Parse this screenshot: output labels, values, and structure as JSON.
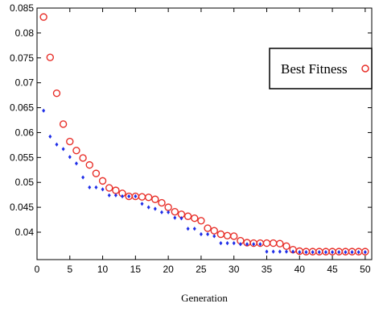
{
  "chart_data": {
    "type": "scatter",
    "xlabel": "Generation",
    "ylabel": "",
    "xlim": [
      0,
      51
    ],
    "ylim": [
      0.0345,
      0.085
    ],
    "x_ticks": [
      0,
      5,
      10,
      15,
      20,
      25,
      30,
      35,
      40,
      45,
      50
    ],
    "y_ticks": [
      0.04,
      0.045,
      0.05,
      0.055,
      0.06,
      0.065,
      0.07,
      0.075,
      0.08,
      0.085
    ],
    "grid": false,
    "legend": {
      "position": "top-right",
      "entries": [
        "Best Fitness"
      ]
    },
    "series": [
      {
        "name": "Best Fitness",
        "marker": "open-circle",
        "color": "#e8302a",
        "x": [
          1,
          2,
          3,
          4,
          5,
          6,
          7,
          8,
          9,
          10,
          11,
          12,
          13,
          14,
          15,
          16,
          17,
          18,
          19,
          20,
          21,
          22,
          23,
          24,
          25,
          26,
          27,
          28,
          29,
          30,
          31,
          32,
          33,
          34,
          35,
          36,
          37,
          38,
          39,
          40,
          41,
          42,
          43,
          44,
          45,
          46,
          47,
          48,
          49,
          50
        ],
        "y": [
          0.0832,
          0.0751,
          0.0679,
          0.0617,
          0.0582,
          0.0564,
          0.0549,
          0.0535,
          0.0518,
          0.0503,
          0.0489,
          0.0484,
          0.0478,
          0.0472,
          0.0472,
          0.0471,
          0.047,
          0.0466,
          0.0459,
          0.045,
          0.0441,
          0.0436,
          0.0432,
          0.0428,
          0.0423,
          0.0408,
          0.0403,
          0.0396,
          0.0393,
          0.0392,
          0.0383,
          0.0379,
          0.0378,
          0.0378,
          0.0378,
          0.0378,
          0.0377,
          0.0372,
          0.0365,
          0.0362,
          0.0361,
          0.0361,
          0.0361,
          0.0361,
          0.0361,
          0.0361,
          0.0361,
          0.0361,
          0.0361,
          0.0361
        ]
      },
      {
        "marker": "dot",
        "color": "#1f2ee8",
        "x": [
          1,
          2,
          3,
          4,
          5,
          6,
          7,
          8,
          9,
          10,
          11,
          12,
          13,
          14,
          15,
          16,
          17,
          18,
          19,
          20,
          21,
          22,
          23,
          24,
          25,
          26,
          27,
          28,
          29,
          30,
          31,
          32,
          33,
          34,
          35,
          36,
          37,
          38,
          39,
          40,
          41,
          42,
          43,
          44,
          45,
          46,
          47,
          48,
          49,
          50
        ],
        "y": [
          0.0644,
          0.0592,
          0.0576,
          0.0567,
          0.0551,
          0.0538,
          0.051,
          0.049,
          0.049,
          0.0486,
          0.0474,
          0.0474,
          0.0472,
          0.0472,
          0.0472,
          0.0457,
          0.045,
          0.0447,
          0.044,
          0.044,
          0.0429,
          0.0428,
          0.0407,
          0.0407,
          0.0396,
          0.0396,
          0.0392,
          0.0378,
          0.0378,
          0.0378,
          0.0376,
          0.0376,
          0.0376,
          0.0376,
          0.0361,
          0.0361,
          0.0361,
          0.0361,
          0.0361,
          0.036,
          0.036,
          0.036,
          0.036,
          0.036,
          0.036,
          0.036,
          0.036,
          0.036,
          0.036,
          0.036
        ]
      }
    ]
  }
}
